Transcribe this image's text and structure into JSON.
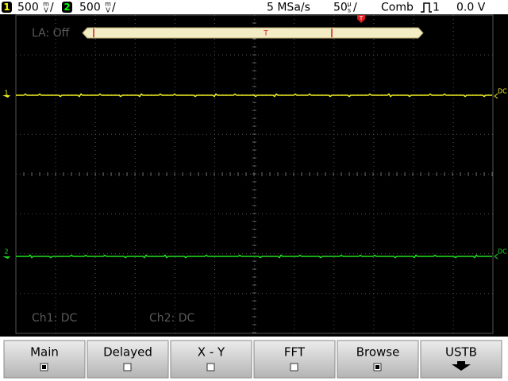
{
  "status_bar": {
    "ch1": {
      "number": "1",
      "scale": "500",
      "unit_top": "m",
      "unit_bottom": "V",
      "slash": "/"
    },
    "ch2": {
      "number": "2",
      "scale": "500",
      "unit_top": "m",
      "unit_bottom": "V",
      "slash": "/"
    },
    "sample_rate": "5 MSa/s",
    "timebase": {
      "scale": "50",
      "unit_top": "µ",
      "unit_bottom": "s",
      "slash": "/"
    },
    "trigger_mode": "Comb",
    "trigger_source": "1",
    "trigger_level": "0.0 V"
  },
  "display": {
    "la_status": "LA: Off",
    "trigger_marker": "T",
    "timebar_marker": "T",
    "ch1_marker": "1",
    "ch2_marker": "2",
    "ch1_right": "DC",
    "ch2_right": "DC",
    "ch1_coupling": "Ch1: DC",
    "ch2_coupling": "Ch2: DC"
  },
  "softkeys": [
    {
      "label": "Main"
    },
    {
      "label": "Delayed"
    },
    {
      "label": "X - Y"
    },
    {
      "label": "FFT"
    },
    {
      "label": "Browse"
    },
    {
      "label": "USTB"
    }
  ]
}
